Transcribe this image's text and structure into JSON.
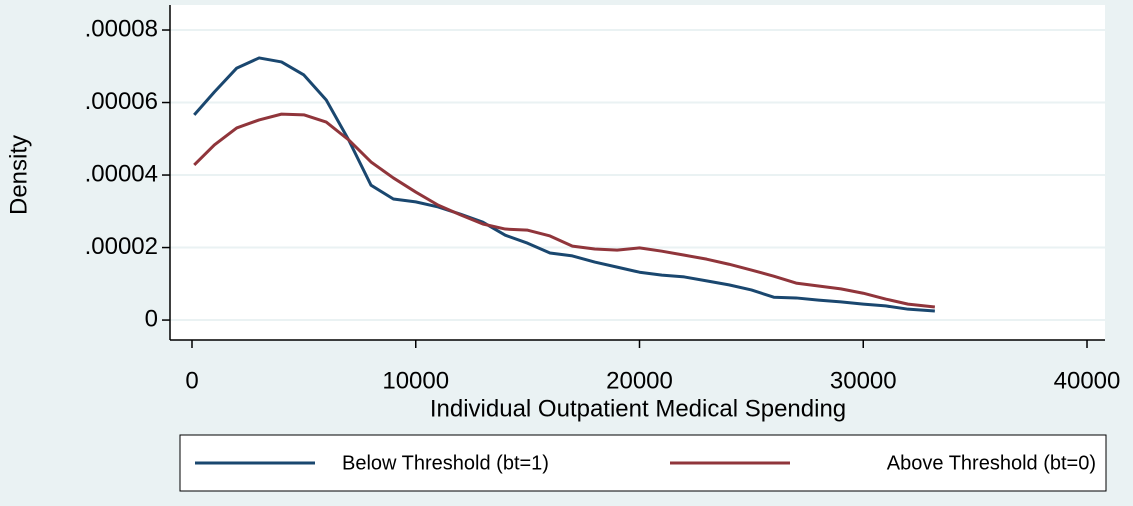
{
  "chart_data": {
    "type": "line",
    "x_label": "Individual Outpatient Medical Spending",
    "y_label": "Density",
    "x": [
      100,
      1000,
      2000,
      3000,
      4000,
      5000,
      6000,
      7000,
      8000,
      9000,
      10000,
      11000,
      12000,
      13000,
      14000,
      15000,
      16000,
      17000,
      18000,
      19000,
      20000,
      21000,
      22000,
      23000,
      24000,
      25000,
      26000,
      27000,
      28000,
      29000,
      30000,
      31000,
      32000,
      33200
    ],
    "series": [
      {
        "name": "Below Threshold (bt=1)",
        "color": "#1a476f",
        "values": [
          5.66e-05,
          6.29e-05,
          6.95e-05,
          7.23e-05,
          7.12e-05,
          6.76e-05,
          6.07e-05,
          4.97e-05,
          3.72e-05,
          3.34e-05,
          3.26e-05,
          3.12e-05,
          2.92e-05,
          2.7e-05,
          2.34e-05,
          2.12e-05,
          1.85e-05,
          1.77e-05,
          1.6e-05,
          1.46e-05,
          1.32e-05,
          1.24e-05,
          1.19e-05,
          1.08e-05,
          9.7e-06,
          8.3e-06,
          6.3e-06,
          6.1e-06,
          5.5e-06,
          5e-06,
          4.4e-06,
          3.9e-06,
          3e-06,
          2.5e-06
        ]
      },
      {
        "name": "Above Threshold (bt=0)",
        "color": "#90353b",
        "values": [
          4.28e-05,
          4.83e-05,
          5.3e-05,
          5.52e-05,
          5.68e-05,
          5.66e-05,
          5.46e-05,
          4.97e-05,
          4.36e-05,
          3.92e-05,
          3.53e-05,
          3.17e-05,
          2.9e-05,
          2.65e-05,
          2.51e-05,
          2.48e-05,
          2.32e-05,
          2.04e-05,
          1.96e-05,
          1.93e-05,
          1.99e-05,
          1.9e-05,
          1.79e-05,
          1.68e-05,
          1.54e-05,
          1.38e-05,
          1.21e-05,
          1.02e-05,
          9.4e-06,
          8.6e-06,
          7.4e-06,
          5.8e-06,
          4.4e-06,
          3.6e-06
        ]
      }
    ],
    "xlim": [
      -983,
      40804
    ],
    "ylim": [
      -5.5e-06,
      8.69e-05
    ],
    "xticks": [
      0,
      10000,
      20000,
      30000,
      40000
    ],
    "yticks": [
      0,
      {
        "value": 2e-05,
        "label": ".00002"
      },
      {
        "value": 4e-05,
        "label": ".00004"
      },
      {
        "value": 6e-05,
        "label": ".00006"
      },
      {
        "value": 8e-05,
        "label": ".00008"
      }
    ],
    "grid": true,
    "legend": "bottom"
  }
}
